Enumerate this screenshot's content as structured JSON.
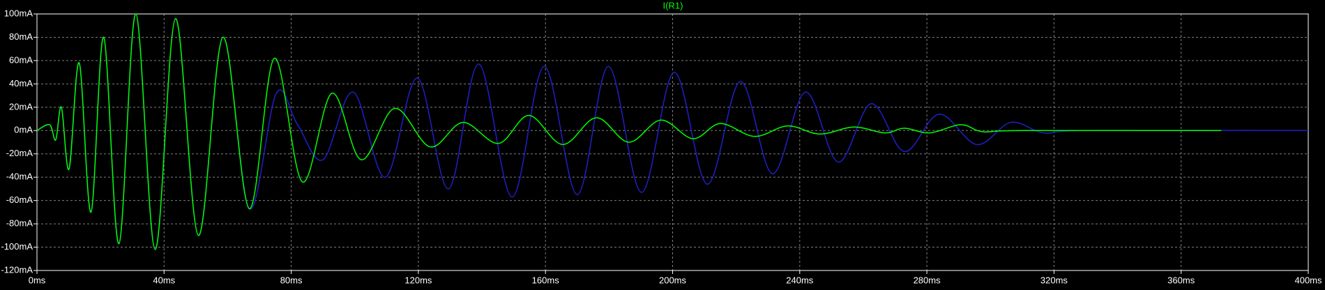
{
  "chart_data": {
    "type": "line",
    "title": "I(R1)",
    "title_color": "#00ff00",
    "background": "#000000",
    "grid": true,
    "grid_color": "#808080",
    "xlim": [
      0,
      400
    ],
    "xticks": [
      {
        "value": 0,
        "label": "0ms"
      },
      {
        "value": 40,
        "label": "40ms"
      },
      {
        "value": 80,
        "label": "80ms"
      },
      {
        "value": 120,
        "label": "120ms"
      },
      {
        "value": 160,
        "label": "160ms"
      },
      {
        "value": 200,
        "label": "200ms"
      },
      {
        "value": 240,
        "label": "240ms"
      },
      {
        "value": 280,
        "label": "280ms"
      },
      {
        "value": 320,
        "label": "320ms"
      },
      {
        "value": 360,
        "label": "360ms"
      },
      {
        "value": 400,
        "label": "400ms"
      }
    ],
    "ylim": [
      -120,
      100
    ],
    "yticks": [
      {
        "value": -120,
        "label": "-120mA"
      },
      {
        "value": -100,
        "label": "-100mA"
      },
      {
        "value": -80,
        "label": "-80mA"
      },
      {
        "value": -60,
        "label": "-60mA"
      },
      {
        "value": -40,
        "label": "-40mA"
      },
      {
        "value": -20,
        "label": "-20mA"
      },
      {
        "value": 0,
        "label": "0mA"
      },
      {
        "value": 20,
        "label": "20mA"
      },
      {
        "value": 40,
        "label": "40mA"
      },
      {
        "value": 60,
        "label": "60mA"
      },
      {
        "value": 80,
        "label": "80mA"
      },
      {
        "value": 100,
        "label": "100mA"
      }
    ],
    "series": [
      {
        "color": "#2020c8",
        "x": [
          0,
          4,
          5.9,
          7.7,
          10.1,
          13.3,
          17,
          21,
          25.8,
          31.1,
          37.2,
          43.6,
          50.8,
          58.5,
          66.8,
          75.3,
          82,
          90,
          99.5,
          109.6,
          119.7,
          129.5,
          139,
          149.5,
          159.6,
          170,
          179.8,
          190.2,
          200.5,
          210.9,
          221.3,
          231.4,
          241.8,
          252.1,
          262.5,
          272.9,
          283.8,
          295.7,
          306.4,
          316.8,
          330,
          400
        ],
        "values": [
          0,
          5,
          -8,
          20,
          -33,
          58,
          -70,
          80,
          -97,
          100,
          -102,
          96,
          -90,
          80,
          -67,
          32,
          5,
          -25,
          33,
          -40,
          45,
          -50,
          57,
          -57,
          55,
          -55,
          55,
          -53,
          50,
          -46,
          42,
          -37,
          33,
          -27,
          23,
          -18,
          14,
          -12,
          7,
          -2,
          0,
          0
        ]
      },
      {
        "color": "#00ff00",
        "x": [
          0,
          4,
          5.9,
          7.7,
          10.1,
          13.3,
          17,
          21,
          25.8,
          31.1,
          37.2,
          43.6,
          50.8,
          58.5,
          66.8,
          74.7,
          83.5,
          92.8,
          102,
          112.5,
          123.7,
          134,
          145.2,
          154.8,
          165.4,
          176,
          186.2,
          196.3,
          206.4,
          215,
          225.8,
          236.2,
          246.3,
          257,
          266.8,
          272.9,
          280.9,
          290.7,
          297.6,
          310,
          372.6
        ],
        "values": [
          0,
          5,
          -8,
          20,
          -33,
          58,
          -70,
          80,
          -97,
          100,
          -102,
          96,
          -90,
          80,
          -67,
          62,
          -44,
          32,
          -25,
          19,
          -14,
          7,
          -11,
          13,
          -12,
          11,
          -10,
          9,
          -7,
          6,
          -5,
          4,
          -3,
          3,
          -2,
          2,
          -2,
          5,
          -1,
          0,
          0
        ]
      }
    ]
  }
}
